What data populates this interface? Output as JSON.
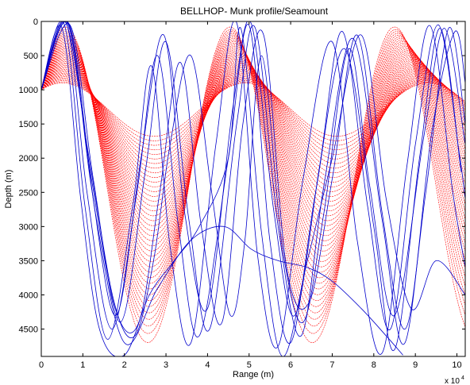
{
  "chart_data": {
    "type": "line",
    "title": "BELLHOP- Munk profile/Seamount",
    "xlabel": "Range (m)",
    "ylabel": "Depth (m)",
    "x_multiplier_label": "x 10",
    "x_multiplier_exponent": "4",
    "xlim": [
      0,
      102000
    ],
    "ylim": [
      4900,
      0
    ],
    "y_reversed": true,
    "xticks": [
      0,
      10000,
      20000,
      30000,
      40000,
      50000,
      60000,
      70000,
      80000,
      90000,
      100000
    ],
    "xtick_labels": [
      "0",
      "1",
      "2",
      "3",
      "4",
      "5",
      "6",
      "7",
      "8",
      "9",
      "10"
    ],
    "yticks": [
      0,
      500,
      1000,
      1500,
      2000,
      2500,
      3000,
      3500,
      4000,
      4500
    ],
    "ytick_labels": [
      "0",
      "500",
      "1000",
      "1500",
      "2000",
      "2500",
      "3000",
      "3500",
      "4000",
      "4500"
    ],
    "source_depth": 1000,
    "series": [
      {
        "color": "#0000cc",
        "ray_class": "bottom-surface reflected",
        "rays": [
          [
            [
              0,
              1000
            ],
            [
              6000,
              20
            ],
            [
              11000,
              2500
            ],
            [
              17000,
              4500
            ],
            [
              23000,
              2500
            ],
            [
              28000,
              500
            ],
            [
              33000,
              3000
            ],
            [
              38000,
              4600
            ],
            [
              45000,
              2000
            ],
            [
              50000,
              60
            ],
            [
              55000,
              3200
            ],
            [
              60000,
              4700
            ],
            [
              66000,
              2500
            ],
            [
              73000,
              400
            ],
            [
              80000,
              3000
            ],
            [
              85000,
              4800
            ],
            [
              91000,
              2000
            ],
            [
              96000,
              100
            ],
            [
              101000,
              2200
            ]
          ],
          [
            [
              0,
              1000
            ],
            [
              5500,
              40
            ],
            [
              10500,
              2700
            ],
            [
              16000,
              4650
            ],
            [
              22000,
              2700
            ],
            [
              26500,
              650
            ],
            [
              31000,
              3300
            ],
            [
              36000,
              4700
            ],
            [
              42000,
              1800
            ],
            [
              47000,
              20
            ],
            [
              52000,
              3400
            ],
            [
              57000,
              4750
            ],
            [
              63000,
              2300
            ],
            [
              70000,
              300
            ],
            [
              76000,
              3200
            ],
            [
              82000,
              4850
            ],
            [
              88000,
              2100
            ],
            [
              93500,
              60
            ],
            [
              99000,
              2500
            ],
            [
              102000,
              3600
            ]
          ],
          [
            [
              0,
              1000
            ],
            [
              7000,
              60
            ],
            [
              12500,
              2300
            ],
            [
              19000,
              4400
            ],
            [
              25000,
              2200
            ],
            [
              30000,
              300
            ],
            [
              35500,
              2900
            ],
            [
              40500,
              4500
            ],
            [
              47000,
              1500
            ],
            [
              51500,
              100
            ],
            [
              57000,
              3000
            ],
            [
              62500,
              4600
            ],
            [
              68000,
              2400
            ],
            [
              75000,
              250
            ],
            [
              82000,
              2900
            ],
            [
              87500,
              4700
            ],
            [
              94000,
              1600
            ],
            [
              99500,
              150
            ],
            [
              102000,
              900
            ]
          ],
          [
            [
              0,
              1000
            ],
            [
              6500,
              30
            ],
            [
              12000,
              2400
            ],
            [
              18000,
              4300
            ],
            [
              24000,
              2000
            ],
            [
              29500,
              200
            ],
            [
              34500,
              2800
            ],
            [
              40000,
              4200
            ],
            [
              46000,
              1300
            ],
            [
              50500,
              30
            ],
            [
              56000,
              2800
            ],
            [
              61000,
              4300
            ],
            [
              67000,
              2100
            ],
            [
              72500,
              150
            ],
            [
              78500,
              2700
            ],
            [
              84000,
              4500
            ],
            [
              90000,
              1800
            ],
            [
              95500,
              50
            ],
            [
              100500,
              1900
            ],
            [
              102000,
              2600
            ]
          ],
          [
            [
              0,
              1000
            ],
            [
              5000,
              100
            ],
            [
              9500,
              2600
            ],
            [
              14000,
              4500
            ],
            [
              20000,
              4880
            ],
            [
              26000,
              4000
            ],
            [
              32000,
              3500
            ],
            [
              38000,
              3000
            ],
            [
              45000,
              2000
            ],
            [
              48000,
              100
            ],
            [
              53000,
              3100
            ],
            [
              58000,
              4900
            ],
            [
              64000,
              3500
            ],
            [
              70000,
              2000
            ],
            [
              77000,
              200
            ],
            [
              83000,
              2600
            ],
            [
              89000,
              4200
            ],
            [
              95000,
              3500
            ],
            [
              102000,
              4000
            ]
          ],
          [
            [
              0,
              1000
            ],
            [
              6800,
              50
            ],
            [
              13000,
              2800
            ],
            [
              20000,
              4700
            ],
            [
              28000,
              3900
            ],
            [
              36000,
              3200
            ],
            [
              44000,
              3000
            ],
            [
              50500,
              3330
            ],
            [
              57000,
              3500
            ],
            [
              64000,
              3600
            ],
            [
              70000,
              3800
            ],
            [
              77000,
              4200
            ],
            [
              83000,
              4600
            ],
            [
              87000,
              4880
            ]
          ],
          [
            [
              0,
              1000
            ],
            [
              5800,
              10
            ],
            [
              11500,
              2000
            ],
            [
              17500,
              4100
            ],
            [
              22500,
              4600
            ],
            [
              27000,
              3500
            ],
            [
              31000,
              1800
            ],
            [
              36000,
              500
            ],
            [
              41000,
              2500
            ],
            [
              45500,
              4300
            ],
            [
              49000,
              3200
            ],
            [
              53000,
              500
            ],
            [
              58000,
              3300
            ],
            [
              63000,
              4400
            ],
            [
              68000,
              2800
            ],
            [
              74000,
              400
            ],
            [
              79000,
              2400
            ],
            [
              85000,
              4300
            ],
            [
              92000,
              1700
            ],
            [
              97000,
              100
            ],
            [
              102000,
              1800
            ]
          ],
          [
            [
              0,
              1000
            ],
            [
              6200,
              15
            ],
            [
              11800,
              2200
            ],
            [
              17800,
              4200
            ],
            [
              23500,
              4400
            ],
            [
              28500,
              2500
            ],
            [
              33500,
              600
            ],
            [
              38500,
              3000
            ],
            [
              43500,
              4400
            ],
            [
              48500,
              1500
            ],
            [
              53500,
              200
            ],
            [
              59000,
              3600
            ],
            [
              64500,
              4100
            ],
            [
              70000,
              2300
            ],
            [
              76000,
              200
            ],
            [
              82000,
              2800
            ],
            [
              87500,
              4500
            ],
            [
              92500,
              2500
            ],
            [
              98000,
              100
            ],
            [
              102000,
              1500
            ]
          ]
        ]
      },
      {
        "color": "#ff0000",
        "ray_class": "refracted",
        "fan": {
          "count": 40,
          "outer_turning_depth": 4700,
          "inner_turning_depth": 1680,
          "outer_top_depth": 80,
          "inner_top_depth": 900
        }
      }
    ],
    "grid": false,
    "legend": "none"
  }
}
